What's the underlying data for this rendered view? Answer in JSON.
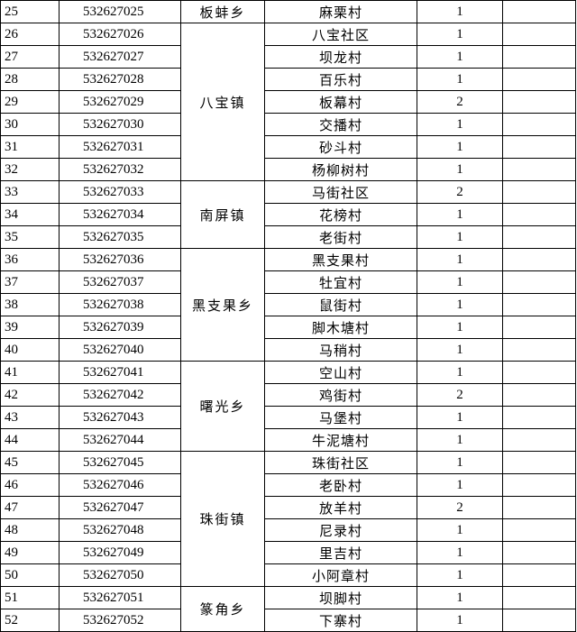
{
  "groups": [
    {
      "township": "板蚌乡",
      "rows": [
        [
          25,
          "532627025",
          "麻栗村",
          1
        ]
      ]
    },
    {
      "township": "八宝镇",
      "rows": [
        [
          26,
          "532627026",
          "八宝社区",
          1
        ],
        [
          27,
          "532627027",
          "坝龙村",
          1
        ],
        [
          28,
          "532627028",
          "百乐村",
          1
        ],
        [
          29,
          "532627029",
          "板幕村",
          2
        ],
        [
          30,
          "532627030",
          "交播村",
          1
        ],
        [
          31,
          "532627031",
          "砂斗村",
          1
        ],
        [
          32,
          "532627032",
          "杨柳树村",
          1
        ]
      ]
    },
    {
      "township": "南屏镇",
      "rows": [
        [
          33,
          "532627033",
          "马街社区",
          2
        ],
        [
          34,
          "532627034",
          "花榜村",
          1
        ],
        [
          35,
          "532627035",
          "老街村",
          1
        ]
      ]
    },
    {
      "township": "黑支果乡",
      "rows": [
        [
          36,
          "532627036",
          "黑支果村",
          1
        ],
        [
          37,
          "532627037",
          "牡宜村",
          1
        ],
        [
          38,
          "532627038",
          "鼠街村",
          1
        ],
        [
          39,
          "532627039",
          "脚木塘村",
          1
        ],
        [
          40,
          "532627040",
          "马稍村",
          1
        ]
      ]
    },
    {
      "township": "曙光乡",
      "rows": [
        [
          41,
          "532627041",
          "空山村",
          1
        ],
        [
          42,
          "532627042",
          "鸡街村",
          2
        ],
        [
          43,
          "532627043",
          "马堡村",
          1
        ],
        [
          44,
          "532627044",
          "牛泥塘村",
          1
        ]
      ]
    },
    {
      "township": "珠街镇",
      "rows": [
        [
          45,
          "532627045",
          "珠街社区",
          1
        ],
        [
          46,
          "532627046",
          "老卧村",
          1
        ],
        [
          47,
          "532627047",
          "放羊村",
          2
        ],
        [
          48,
          "532627048",
          "尼录村",
          1
        ],
        [
          49,
          "532627049",
          "里吉村",
          1
        ],
        [
          50,
          "532627050",
          "小阿章村",
          1
        ]
      ]
    },
    {
      "township": "篆角乡",
      "rows": [
        [
          51,
          "532627051",
          "坝脚村",
          1
        ],
        [
          52,
          "532627052",
          "下寨村",
          1
        ]
      ]
    }
  ]
}
